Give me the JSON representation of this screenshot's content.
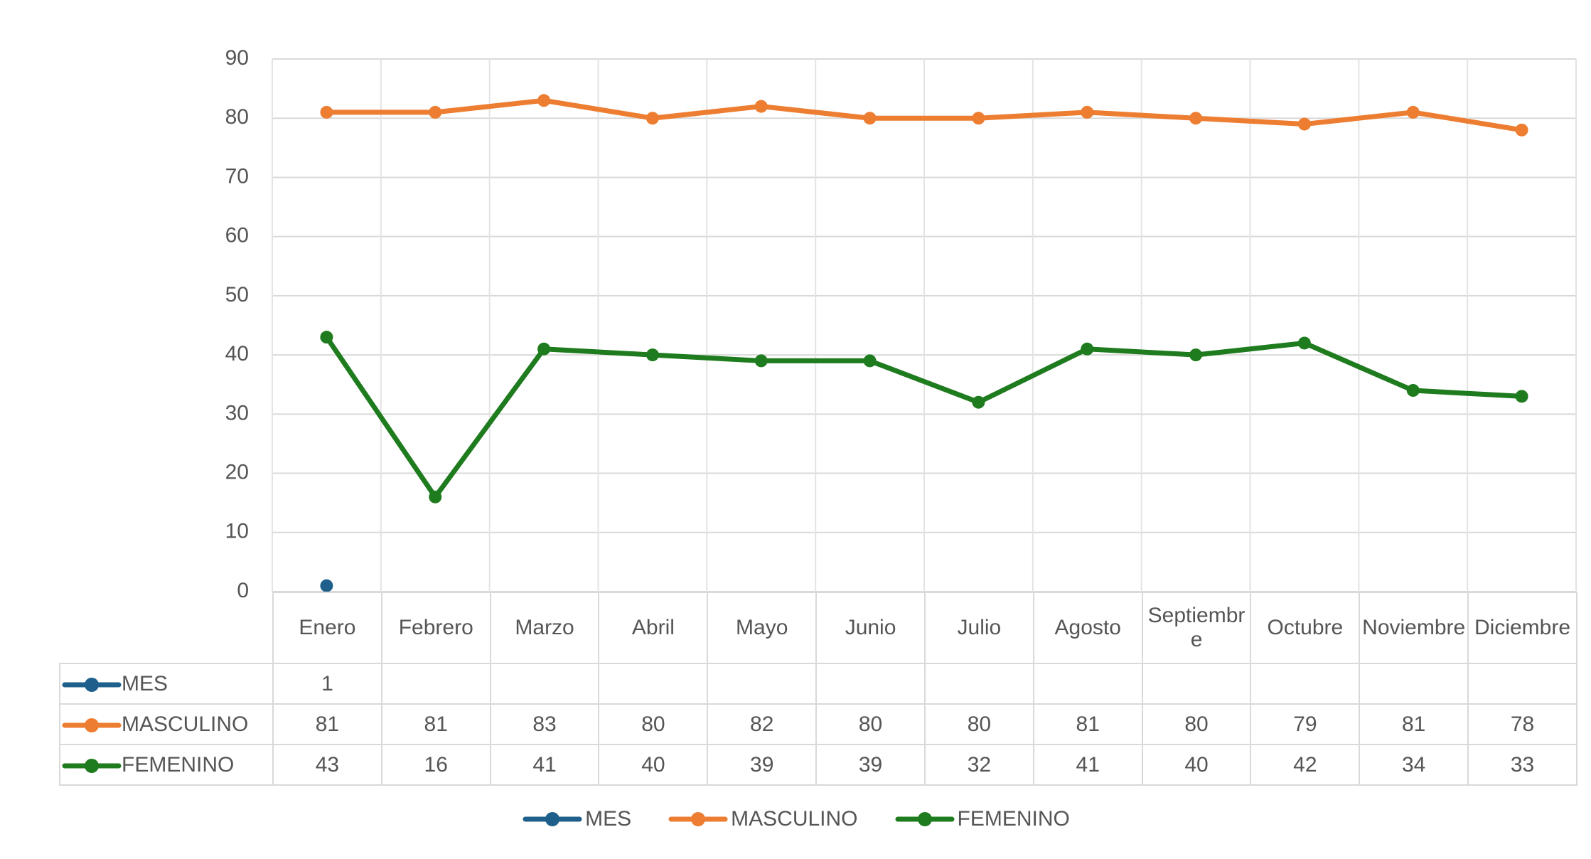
{
  "chart_data": {
    "type": "line",
    "categories": [
      "Enero",
      "Febrero",
      "Marzo",
      "Abril",
      "Mayo",
      "Junio",
      "Julio",
      "Agosto",
      "Septiembre",
      "Octubre",
      "Noviembre",
      "Diciembre"
    ],
    "series": [
      {
        "name": "MES",
        "color": "#1f5f8b",
        "values": [
          1,
          null,
          null,
          null,
          null,
          null,
          null,
          null,
          null,
          null,
          null,
          null
        ]
      },
      {
        "name": "MASCULINO",
        "color": "#ed7d31",
        "values": [
          81,
          81,
          83,
          80,
          82,
          80,
          80,
          81,
          80,
          79,
          81,
          78
        ]
      },
      {
        "name": "FEMENINO",
        "color": "#1e7b1e",
        "values": [
          43,
          16,
          41,
          40,
          39,
          39,
          32,
          41,
          40,
          42,
          34,
          33
        ]
      }
    ],
    "ylim": [
      0,
      90
    ],
    "yticks": [
      0,
      10,
      20,
      30,
      40,
      50,
      60,
      70,
      80,
      90
    ],
    "grid": true,
    "legend": "bottom"
  }
}
